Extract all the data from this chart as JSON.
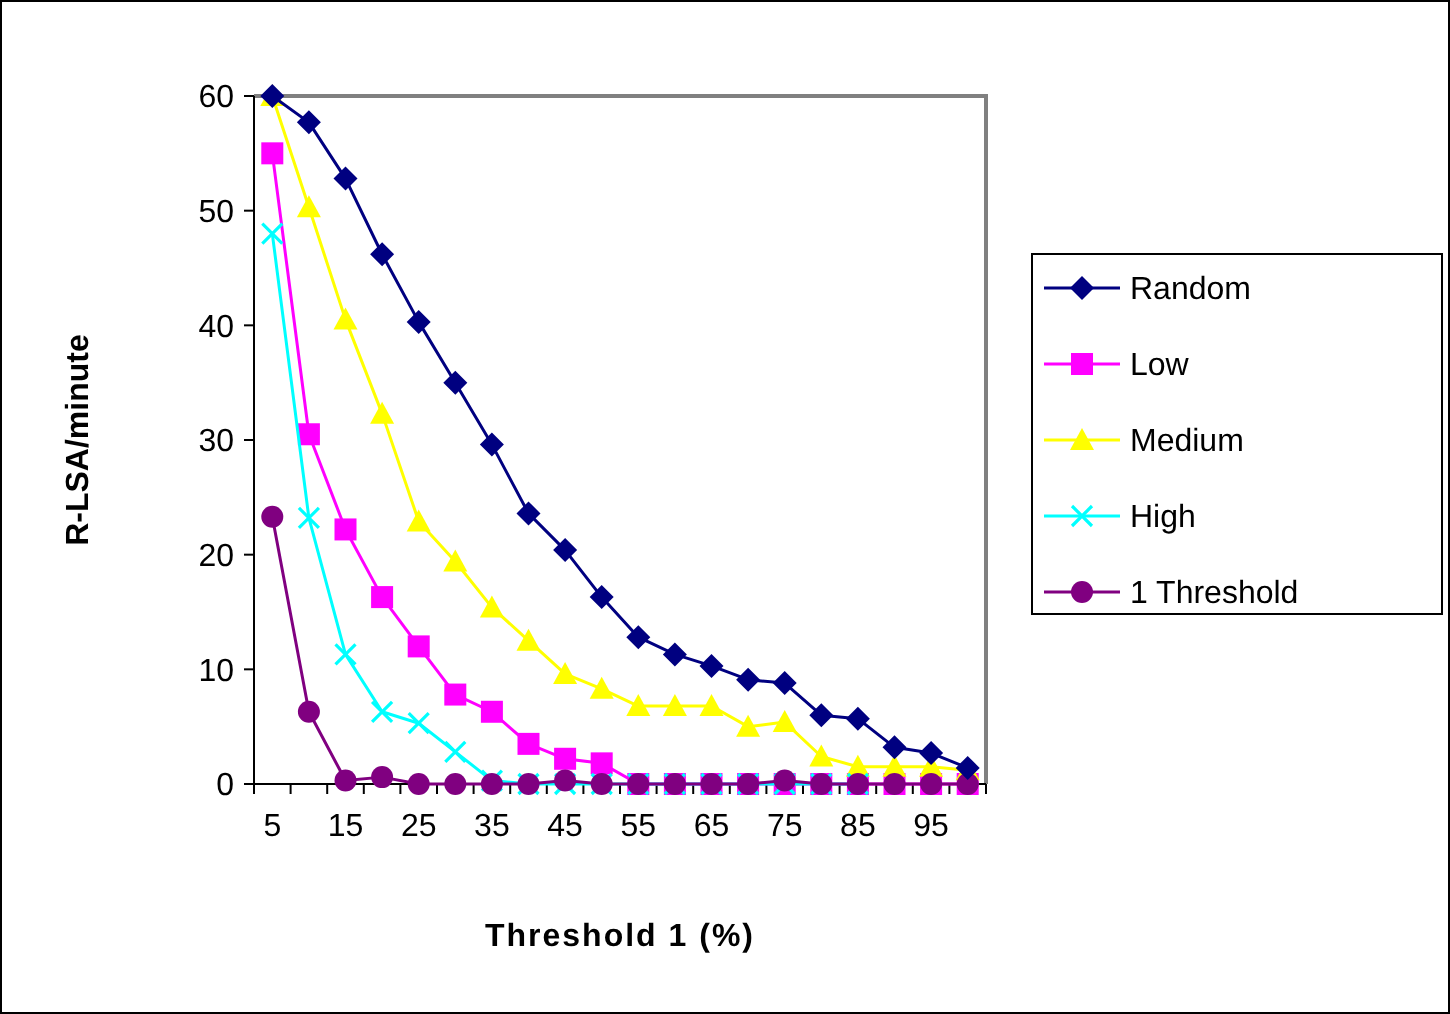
{
  "chart_data": {
    "type": "line",
    "xlabel": "Threshold 1 (%)",
    "ylabel": "R-LSA/minute",
    "categories": [
      "5",
      null,
      "15",
      null,
      "25",
      null,
      "35",
      null,
      "45",
      null,
      "55",
      null,
      "65",
      null,
      "75",
      null,
      "85",
      null,
      "95",
      null
    ],
    "ylim": [
      0,
      60
    ],
    "yticks": [
      0,
      10,
      20,
      30,
      40,
      50,
      60
    ],
    "grid": false,
    "legend": "right",
    "series": [
      {
        "name": "Random",
        "color": "#000080",
        "marker": "diamond",
        "values": [
          60,
          57.7,
          52.8,
          46.2,
          40.3,
          35,
          29.6,
          23.6,
          20.4,
          16.3,
          12.8,
          11.3,
          10.3,
          9.1,
          8.8,
          6,
          5.7,
          3.2,
          2.7,
          1.4
        ]
      },
      {
        "name": "Low",
        "color": "#ff00ff",
        "marker": "square",
        "values": [
          55,
          30.5,
          22.2,
          16.3,
          12,
          7.8,
          6.3,
          3.5,
          2.2,
          1.8,
          0,
          0,
          0,
          0,
          0,
          0,
          0,
          0,
          0,
          0
        ]
      },
      {
        "name": "Medium",
        "color": "#ffff00",
        "marker": "triangle",
        "values": [
          60,
          50.3,
          40.5,
          32.3,
          22.9,
          19.4,
          15.4,
          12.5,
          9.6,
          8.3,
          6.8,
          6.8,
          6.8,
          5,
          5.4,
          2.4,
          1.5,
          1.5,
          1.5,
          1.2
        ]
      },
      {
        "name": "High",
        "color": "#00ffff",
        "marker": "cross",
        "values": [
          48,
          23.2,
          11.3,
          6.3,
          5.3,
          2.8,
          0.3,
          0,
          0,
          0,
          0,
          0,
          0,
          0,
          0,
          0,
          0,
          null,
          null,
          null
        ]
      },
      {
        "name": "1 Threshold",
        "color": "#800080",
        "marker": "circle",
        "values": [
          23.3,
          6.3,
          0.3,
          0.6,
          0,
          0,
          0,
          0,
          0.3,
          0,
          0,
          0,
          0,
          0,
          0.3,
          0,
          0,
          0,
          0,
          0
        ]
      }
    ]
  }
}
